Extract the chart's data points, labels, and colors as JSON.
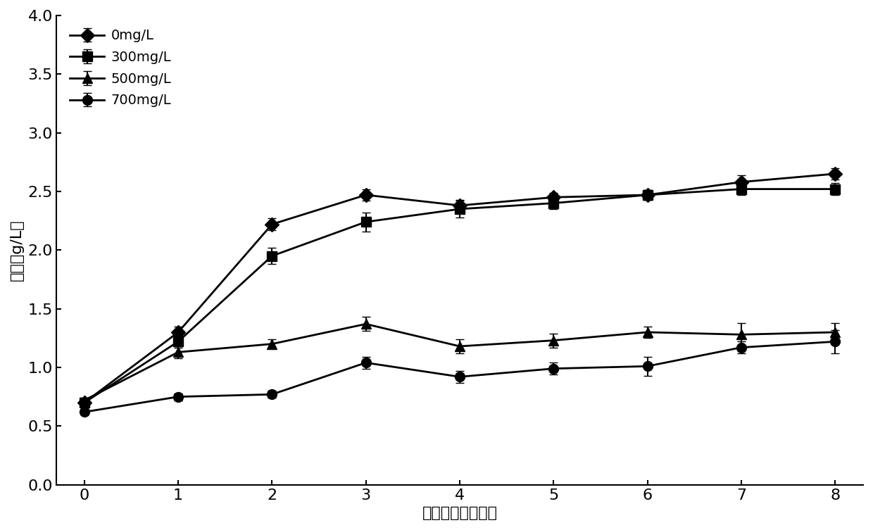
{
  "x": [
    0,
    1,
    2,
    3,
    4,
    5,
    6,
    7,
    8
  ],
  "series": [
    {
      "label": "0mg/L",
      "y": [
        0.7,
        1.3,
        2.22,
        2.47,
        2.38,
        2.45,
        2.47,
        2.58,
        2.65
      ],
      "yerr": [
        0.02,
        0.05,
        0.05,
        0.05,
        0.05,
        0.04,
        0.04,
        0.06,
        0.05
      ],
      "marker": "D",
      "markersize": 10
    },
    {
      "label": "300mg/L",
      "y": [
        0.7,
        1.22,
        1.95,
        2.24,
        2.35,
        2.4,
        2.47,
        2.52,
        2.52
      ],
      "yerr": [
        0.02,
        0.05,
        0.07,
        0.08,
        0.07,
        0.05,
        0.04,
        0.05,
        0.05
      ],
      "marker": "s",
      "markersize": 10
    },
    {
      "label": "500mg/L",
      "y": [
        0.72,
        1.13,
        1.2,
        1.37,
        1.18,
        1.23,
        1.3,
        1.28,
        1.3
      ],
      "yerr": [
        0.02,
        0.05,
        0.04,
        0.06,
        0.06,
        0.06,
        0.05,
        0.1,
        0.08
      ],
      "marker": "^",
      "markersize": 10
    },
    {
      "label": "700mg/L",
      "y": [
        0.62,
        0.75,
        0.77,
        1.04,
        0.92,
        0.99,
        1.01,
        1.17,
        1.22
      ],
      "yerr": [
        0.02,
        0.03,
        0.03,
        0.05,
        0.05,
        0.05,
        0.08,
        0.05,
        0.1
      ],
      "marker": "o",
      "markersize": 10
    }
  ],
  "xlabel": "培养时间（天数）",
  "ylabel": "干重（g/L）",
  "ylim": [
    0.0,
    4.0
  ],
  "xlim": [
    -0.3,
    8.3
  ],
  "yticks": [
    0.0,
    0.5,
    1.0,
    1.5,
    2.0,
    2.5,
    3.0,
    3.5,
    4.0
  ],
  "xticks": [
    0,
    1,
    2,
    3,
    4,
    5,
    6,
    7,
    8
  ],
  "line_color": "#000000",
  "background_color": "#ffffff",
  "xlabel_fontsize": 16,
  "ylabel_fontsize": 16,
  "tick_fontsize": 16,
  "legend_fontsize": 14,
  "linewidth": 2.0,
  "capsize": 4
}
